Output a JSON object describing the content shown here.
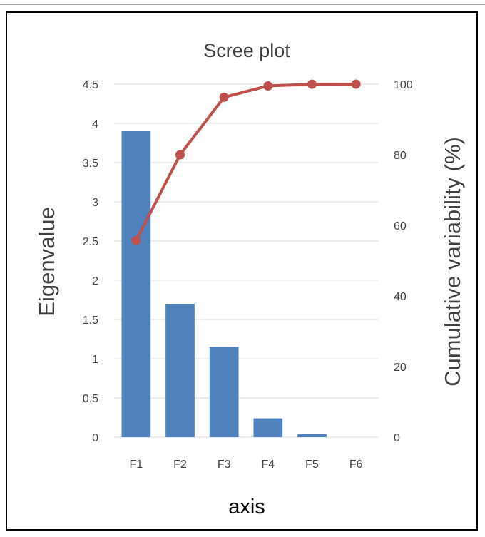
{
  "chart_data": {
    "type": "bar",
    "title": "Scree plot",
    "xlabel": "axis",
    "ylabel": "Eigenvalue",
    "y2label": "Cumulative variability (%)",
    "categories": [
      "F1",
      "F2",
      "F3",
      "F4",
      "F5",
      "F6"
    ],
    "ylim": [
      0,
      4.5
    ],
    "y_ticks": [
      "0",
      "0.5",
      "1",
      "1.5",
      "2",
      "2.5",
      "3",
      "3.5",
      "4",
      "4.5"
    ],
    "y2lim": [
      0,
      100
    ],
    "y2_ticks": [
      "0",
      "20",
      "40",
      "60",
      "80",
      "100"
    ],
    "grid": true,
    "legend": "none",
    "series": [
      {
        "type": "bar",
        "axis": "left",
        "color": "#4F81BD",
        "values": [
          3.9,
          1.7,
          1.15,
          0.24,
          0.04,
          0.0
        ]
      },
      {
        "type": "line",
        "axis": "right",
        "color": "#C0504D",
        "values": [
          55.7,
          80.0,
          96.3,
          99.5,
          99.98,
          100.0
        ]
      }
    ]
  }
}
